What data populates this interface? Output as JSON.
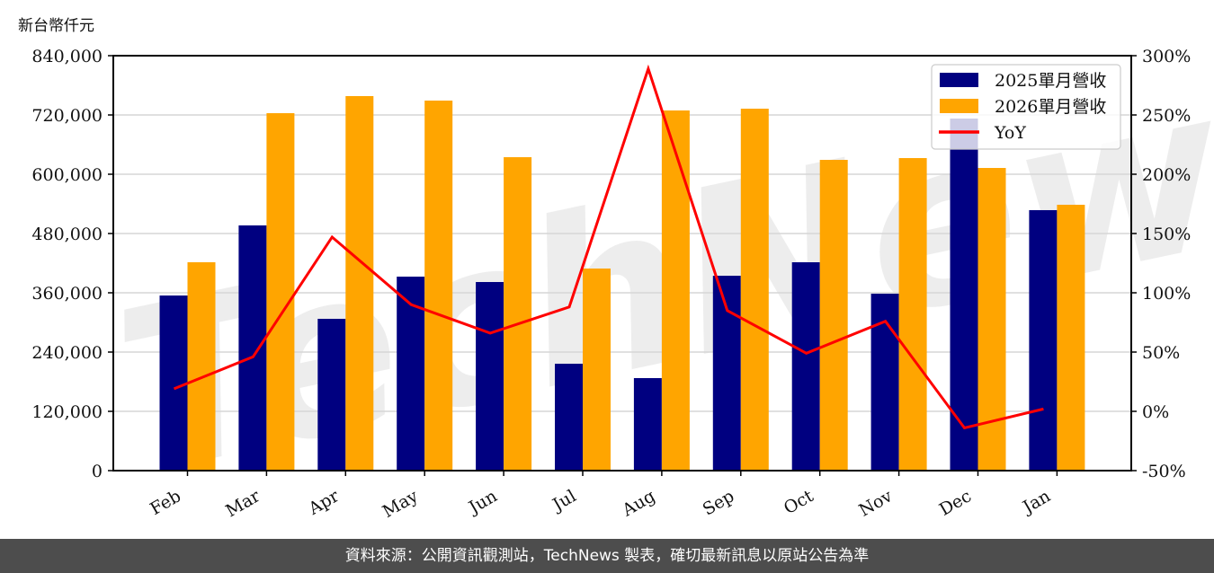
{
  "chart_data": {
    "type": "bar",
    "title": "",
    "ylabel": "新台幣仟元",
    "xlabel": "",
    "categories": [
      "Feb",
      "Mar",
      "Apr",
      "May",
      "Jun",
      "Jul",
      "Aug",
      "Sep",
      "Oct",
      "Nov",
      "Dec",
      "Jan"
    ],
    "series": [
      {
        "name": "2025單月營收",
        "type": "bar",
        "color": "#000080",
        "axis": "left",
        "values": [
          354500,
          496400,
          307300,
          392700,
          381800,
          216400,
          187300,
          394500,
          421800,
          358200,
          712700,
          527300
        ]
      },
      {
        "name": "2026單月營收",
        "type": "bar",
        "color": "#FFA500",
        "axis": "left",
        "values": [
          421800,
          723600,
          758200,
          749100,
          634500,
          409100,
          729100,
          732700,
          629100,
          632700,
          612700,
          538200
        ]
      },
      {
        "name": "YoY",
        "type": "line",
        "color": "#FF0000",
        "axis": "right",
        "unit": "%",
        "values": [
          19,
          46,
          147,
          90,
          66,
          88,
          289,
          85,
          49,
          76,
          -14,
          2
        ]
      }
    ],
    "ylim": [
      0,
      840000
    ],
    "y_ticks": [
      "0",
      "120,000",
      "240,000",
      "360,000",
      "480,000",
      "600,000",
      "720,000",
      "840,000"
    ],
    "y2lim": [
      -50,
      300
    ],
    "y2_ticks": [
      "-50%",
      "0%",
      "50%",
      "100%",
      "150%",
      "200%",
      "250%",
      "300%"
    ],
    "grid": true,
    "legend_position": "upper right",
    "watermark": "TechNews"
  },
  "header": {
    "unit_label": "新台幣仟元"
  },
  "legend": {
    "items": [
      {
        "label": "2025單月營收",
        "color": "#000080"
      },
      {
        "label": "2026單月營收",
        "color": "#FFA500"
      },
      {
        "label": "YoY",
        "color": "#FF0000"
      }
    ]
  },
  "footer": {
    "source_text": "資料來源：公開資訊觀測站，TechNews 製表，確切最新訊息以原站公告為準"
  }
}
